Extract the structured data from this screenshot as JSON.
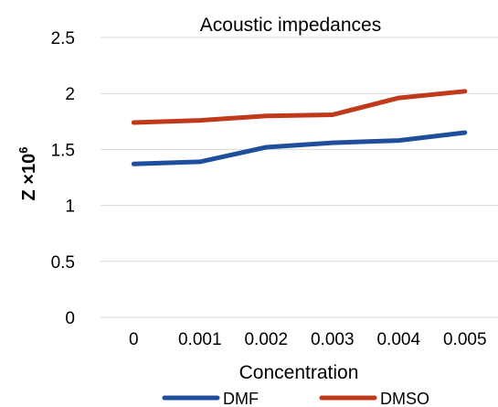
{
  "chart_data": {
    "type": "line",
    "title": "Acoustic impedances",
    "xlabel": "Concentration",
    "ylabel_base": "Z ×10",
    "ylabel_exp": "6",
    "categories": [
      "0",
      "0.001",
      "0.002",
      "0.003",
      "0.004",
      "0.005"
    ],
    "y_ticks": [
      "0",
      "0.5",
      "1",
      "1.5",
      "2",
      "2.5"
    ],
    "ylim": [
      0,
      2.5
    ],
    "grid": true,
    "legend": "bottom",
    "series": [
      {
        "name": "DMF",
        "color": "#1f4e9c",
        "values": [
          1.37,
          1.39,
          1.52,
          1.56,
          1.58,
          1.65
        ]
      },
      {
        "name": "DMSO",
        "color": "#c0391b",
        "values": [
          1.74,
          1.76,
          1.8,
          1.81,
          1.96,
          2.02
        ]
      }
    ]
  }
}
